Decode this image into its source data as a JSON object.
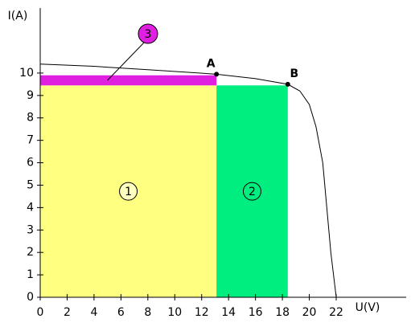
{
  "chart_data": {
    "type": "iv-diagram",
    "x_label": "U(V)",
    "y_label": "I(A)",
    "xlim": [
      0,
      27.2
    ],
    "ylim": [
      0,
      12.9
    ],
    "xticks": [
      0,
      2,
      4,
      6,
      8,
      10,
      12,
      14,
      16,
      18,
      20,
      22
    ],
    "yticks": [
      0,
      1,
      2,
      3,
      4,
      5,
      6,
      7,
      8,
      9,
      10
    ],
    "curve": {
      "x": [
        0,
        4,
        8,
        13.1,
        16,
        18.4,
        19.3,
        20,
        20.5,
        21,
        21.3,
        21.6,
        21.8,
        22
      ],
      "y": [
        10.4,
        10.3,
        10.15,
        9.95,
        9.75,
        9.5,
        9.2,
        8.6,
        7.6,
        6,
        4,
        2,
        1,
        0
      ]
    },
    "regions": [
      {
        "label": "1",
        "x": [
          0,
          13.1
        ],
        "y": [
          0,
          9.45
        ],
        "color": "#ffff80",
        "marker": "#ffffc0"
      },
      {
        "label": "2",
        "x": [
          13.1,
          18.4
        ],
        "y": [
          0,
          9.45
        ],
        "color": "#00ee80",
        "marker": "#00ee80"
      },
      {
        "label": "3",
        "x": [
          0,
          13.1
        ],
        "y": [
          9.45,
          9.9
        ],
        "color": "#e020e0",
        "marker": "#e020e0"
      }
    ],
    "points": [
      {
        "label": "A",
        "x": 13.1,
        "y": 9.95
      },
      {
        "label": "B",
        "x": 18.4,
        "y": 9.5
      }
    ]
  }
}
